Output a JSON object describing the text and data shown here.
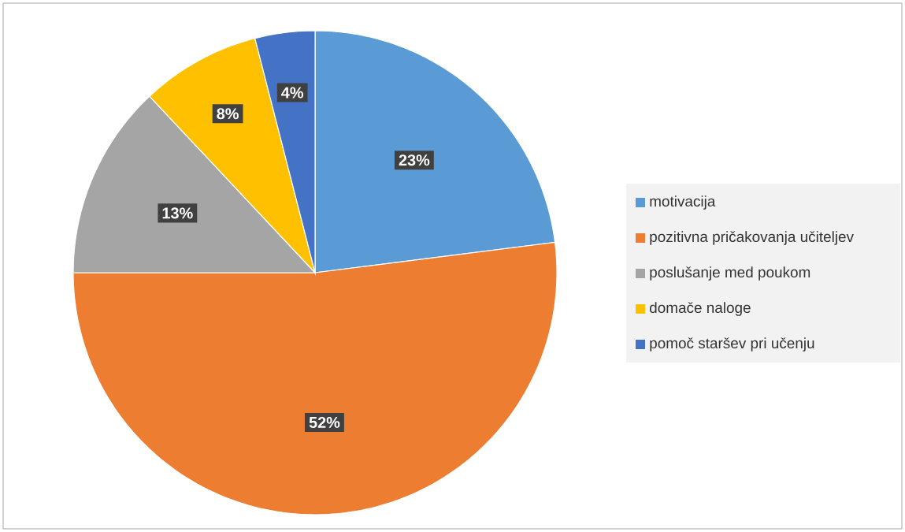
{
  "chart_data": {
    "type": "pie",
    "categories": [
      "motivacija",
      "pozitivna pričakovanja učiteljev",
      "poslušanje med poukom",
      "domače naloge",
      "pomoč staršev pri učenju"
    ],
    "values": [
      23,
      52,
      13,
      8,
      4
    ],
    "colors": [
      "#5b9bd5",
      "#ed7d31",
      "#a5a5a5",
      "#ffc000",
      "#4472c4"
    ],
    "value_labels": [
      "23%",
      "52%",
      "13%",
      "8%",
      "4%"
    ],
    "legend": "right"
  }
}
